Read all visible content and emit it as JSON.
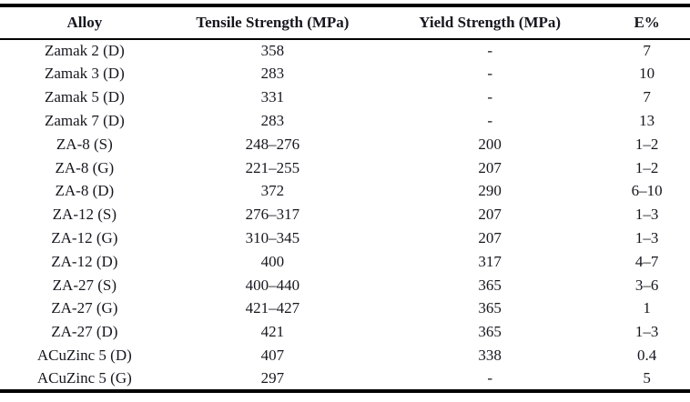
{
  "table": {
    "columns": [
      "Alloy",
      "Tensile Strength (MPa)",
      "Yield Strength (MPa)",
      "E%"
    ],
    "rows": [
      [
        "Zamak 2 (D)",
        "358",
        "-",
        "7"
      ],
      [
        "Zamak 3 (D)",
        "283",
        "-",
        "10"
      ],
      [
        "Zamak 5 (D)",
        "331",
        "-",
        "7"
      ],
      [
        "Zamak 7 (D)",
        "283",
        "-",
        "13"
      ],
      [
        "ZA-8 (S)",
        "248–276",
        "200",
        "1–2"
      ],
      [
        "ZA-8 (G)",
        "221–255",
        "207",
        "1–2"
      ],
      [
        "ZA-8 (D)",
        "372",
        "290",
        "6–10"
      ],
      [
        "ZA-12 (S)",
        "276–317",
        "207",
        "1–3"
      ],
      [
        "ZA-12 (G)",
        "310–345",
        "207",
        "1–3"
      ],
      [
        "ZA-12 (D)",
        "400",
        "317",
        "4–7"
      ],
      [
        "ZA-27 (S)",
        "400–440",
        "365",
        "3–6"
      ],
      [
        "ZA-27 (G)",
        "421–427",
        "365",
        "1"
      ],
      [
        "ZA-27 (D)",
        "421",
        "365",
        "1–3"
      ],
      [
        "ACuZinc 5 (D)",
        "407",
        "338",
        "0.4"
      ],
      [
        "ACuZinc 5 (G)",
        "297",
        "-",
        "5"
      ]
    ]
  },
  "colors": {
    "text": "#16161e",
    "rule": "#000000",
    "background": "#ffffff"
  }
}
